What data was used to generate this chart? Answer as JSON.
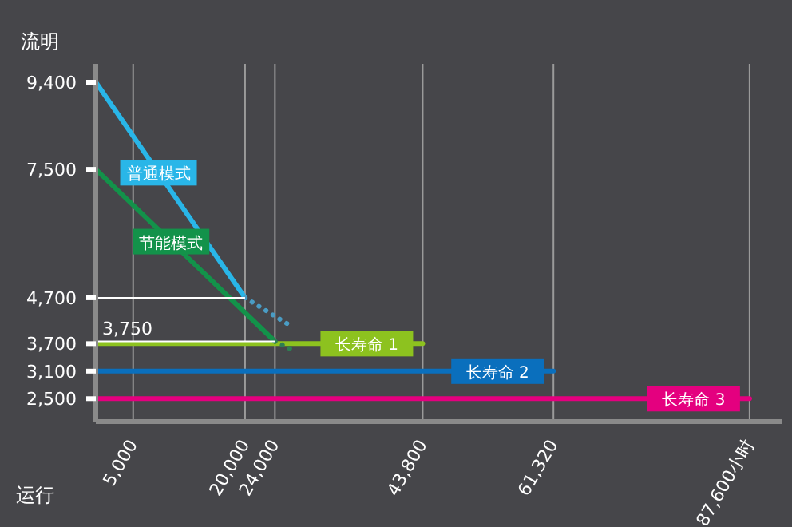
{
  "chart_data": {
    "type": "line",
    "xlabel": "运行",
    "ylabel": "流明",
    "xlim": [
      0,
      92000
    ],
    "ylim": [
      2000,
      9800
    ],
    "xticks": [
      {
        "value": 5000,
        "label": "5,000"
      },
      {
        "value": 20000,
        "label": "20,000"
      },
      {
        "value": 24000,
        "label": "24,000"
      },
      {
        "value": 43800,
        "label": "43,800"
      },
      {
        "value": 61320,
        "label": "61,320"
      },
      {
        "value": 87600,
        "label": "87,600小时"
      }
    ],
    "yticks": [
      {
        "value": 2500,
        "label": "2,500"
      },
      {
        "value": 3100,
        "label": "3,100"
      },
      {
        "value": 3700,
        "label": "3,700"
      },
      {
        "value": 4700,
        "label": "4,700"
      },
      {
        "value": 7500,
        "label": "7,500"
      },
      {
        "value": 9400,
        "label": "9,400"
      }
    ],
    "series": [
      {
        "name": "长寿命 1",
        "color": "#8dc21f",
        "x": [
          0,
          43800
        ],
        "values": [
          3700,
          3700
        ]
      },
      {
        "name": "长寿命 2",
        "color": "#0a6fbd",
        "x": [
          0,
          61320
        ],
        "values": [
          3100,
          3100
        ]
      },
      {
        "name": "长寿命 3",
        "color": "#e4007f",
        "x": [
          0,
          87600
        ],
        "values": [
          2500,
          2500
        ]
      },
      {
        "name": "普通模式",
        "color": "#29b6e8",
        "x": [
          0,
          20000
        ],
        "values": [
          9400,
          4700
        ]
      },
      {
        "color": "#4a9cc4",
        "line_style": "dotted",
        "x": [
          20000,
          26000
        ],
        "values": [
          4700,
          4100
        ]
      },
      {
        "name": "节能模式",
        "color": "#13924a",
        "x": [
          0,
          24000
        ],
        "values": [
          7500,
          3750
        ]
      },
      {
        "color": "#2e7d52",
        "line_style": "dotted",
        "x": [
          24000,
          26500
        ],
        "values": [
          3750,
          3550
        ]
      }
    ],
    "ref_lines": [
      {
        "axis": "y",
        "value": 4700,
        "color": "#ffffff"
      },
      {
        "axis": "y",
        "value": 3750,
        "color": "#ffffff",
        "label": "3,750"
      }
    ],
    "grid": "x",
    "marker": "none",
    "line_style": "solid"
  }
}
